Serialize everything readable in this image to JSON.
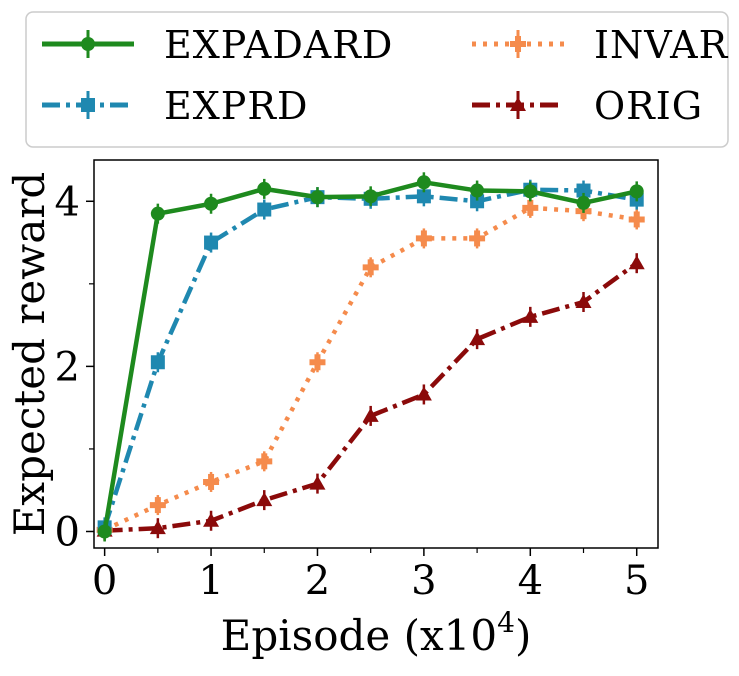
{
  "chart_data": {
    "type": "line",
    "title": "",
    "xlabel": "Episode (x10",
    "xlabel_exponent": "4",
    "xlabel_close": ")",
    "ylabel": "Expected reward",
    "xlim": [
      -0.1,
      5.2
    ],
    "ylim": [
      -0.2,
      4.5
    ],
    "x": [
      0,
      0.5,
      1,
      1.5,
      2,
      2.5,
      3,
      3.5,
      4,
      4.5,
      5
    ],
    "x_ticks": [
      0,
      1,
      2,
      3,
      4,
      5
    ],
    "x_tick_labels": [
      "0",
      "1",
      "2",
      "3",
      "4",
      "5"
    ],
    "y_ticks": [
      0,
      2,
      4
    ],
    "y_tick_labels": [
      "0",
      "2",
      "4"
    ],
    "legend_position": "top (above plot, 2 columns)",
    "series": [
      {
        "name": "EXPADARD",
        "color": "#1e8a1e",
        "marker": "circle",
        "dash": "solid",
        "values": [
          0.0,
          3.85,
          3.97,
          4.15,
          4.05,
          4.06,
          4.23,
          4.13,
          4.12,
          3.98,
          4.12
        ]
      },
      {
        "name": "EXPRD",
        "color": "#1f88b0",
        "marker": "square",
        "dash": "dashdot",
        "values": [
          0.05,
          2.05,
          3.5,
          3.9,
          4.05,
          4.03,
          4.06,
          4.0,
          4.14,
          4.13,
          4.02
        ]
      },
      {
        "name": "INVAR",
        "color": "#f58b4c",
        "marker": "plus",
        "dash": "dotted",
        "values": [
          0.02,
          0.32,
          0.6,
          0.85,
          2.05,
          3.2,
          3.55,
          3.55,
          3.92,
          3.88,
          3.78
        ]
      },
      {
        "name": "ORIG",
        "color": "#8b0a0a",
        "marker": "triangle",
        "dash": "dashdot",
        "values": [
          0.01,
          0.04,
          0.13,
          0.38,
          0.58,
          1.4,
          1.66,
          2.33,
          2.6,
          2.78,
          3.25
        ]
      }
    ]
  }
}
